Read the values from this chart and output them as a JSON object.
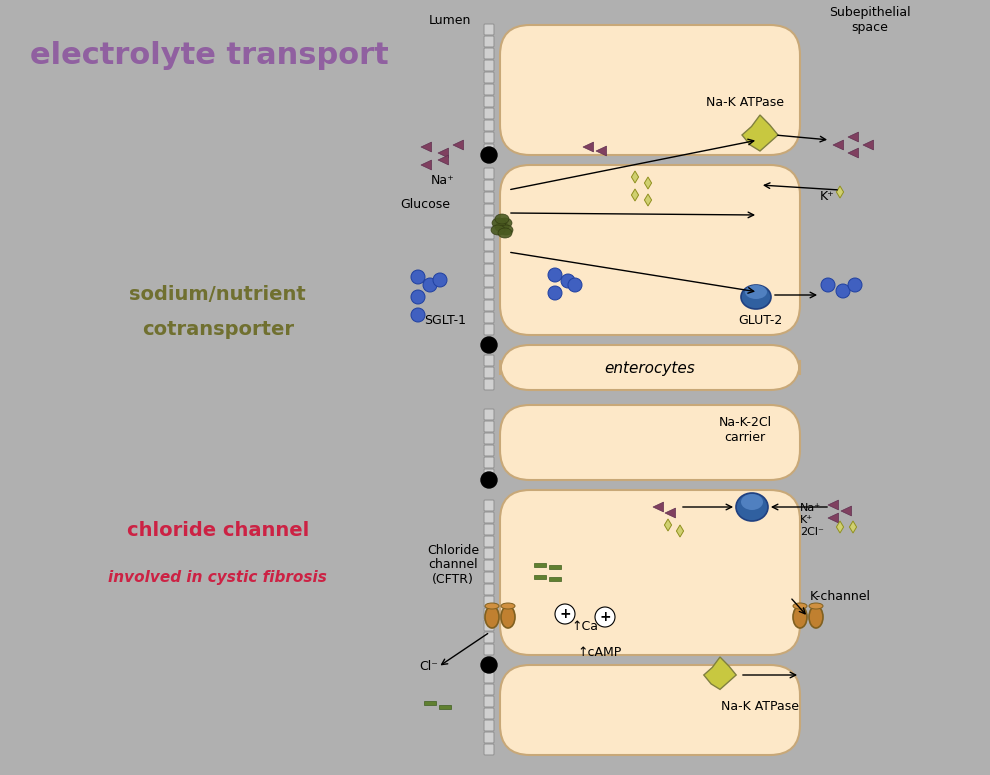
{
  "bg_color": "#b0b0b0",
  "cell_fill": "#fde8c8",
  "cell_edge": "#c8a878",
  "title": "electrolyte transport",
  "title_color": "#9060a0",
  "title_fontsize": 22,
  "label1": "sodium/nutrient",
  "label1b": "cotransporter",
  "label1_color": "#707030",
  "label2": "chloride channel",
  "label2b": "involved in cystic fibrosis",
  "label2_color": "#cc2244",
  "label2b_color": "#cc2244",
  "lumen_label": "Lumen",
  "subep_label": "Subepithelial\nspace",
  "enterocytes_label": "enterocytes",
  "na_k_atpase": "Na-K ATPase",
  "glut2": "GLUT-2",
  "sglt1": "SGLT-1",
  "glucose": "Glucose",
  "na_plus": "Na⁺",
  "k_plus": "K⁺",
  "na_k_2cl": "Na-K-2Cl\ncarrier",
  "k_channel": "K-channel",
  "na_k_atpase2": "Na-K ATPase",
  "cftr": "Chloride\nchannel\n(CFTR)",
  "cl_minus": "Cl⁻",
  "ca": "↑Ca",
  "camp": "↑cAMP",
  "na_k_2cl_ions": "Na⁺\nK⁺\n2Cl⁻"
}
